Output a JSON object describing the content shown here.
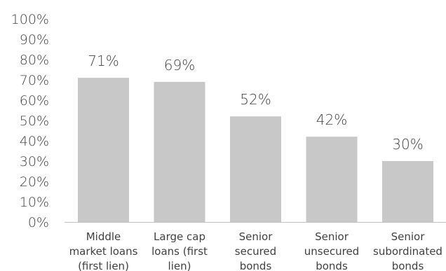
{
  "chart_data": {
    "type": "bar",
    "categories": [
      [
        "Middle",
        "market loans",
        "(first lien)"
      ],
      [
        "Large cap",
        "loans (first",
        "lien)"
      ],
      [
        "Senior",
        "secured",
        "bonds"
      ],
      [
        "Senior",
        "unsecured",
        "bonds"
      ],
      [
        "Senior",
        "subordinated",
        "bonds"
      ]
    ],
    "values": [
      71,
      69,
      52,
      42,
      30
    ],
    "value_labels": [
      "71%",
      "69%",
      "52%",
      "42%",
      "30%"
    ],
    "yticks": [
      "0%",
      "10%",
      "20%",
      "30%",
      "40%",
      "50%",
      "60%",
      "70%",
      "80%",
      "90%",
      "100%"
    ],
    "ylim": [
      0,
      100
    ],
    "title": "",
    "xlabel": "",
    "ylabel": "",
    "grid": false,
    "colors": {
      "bar": "#c8c8c8",
      "text": "#404040",
      "axis": "#bfbfbf"
    }
  }
}
